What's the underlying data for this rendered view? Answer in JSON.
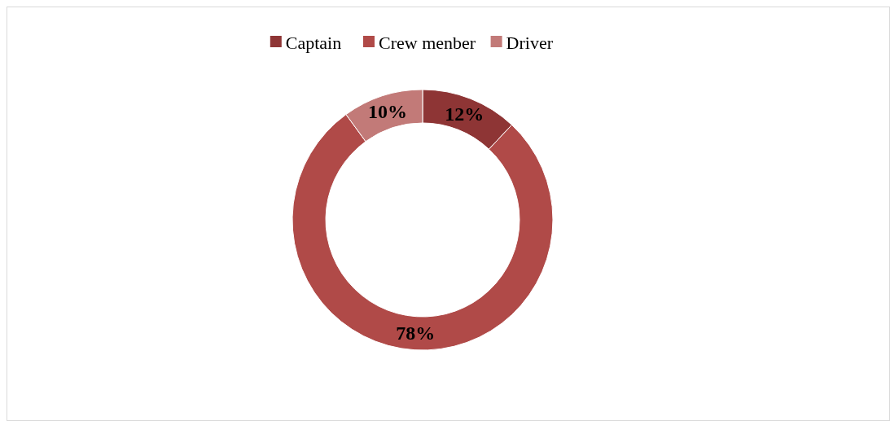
{
  "chart_data": {
    "type": "donut",
    "categories": [
      "Captain",
      "Crew menber",
      "Driver"
    ],
    "values": [
      12,
      78,
      10
    ],
    "colors": [
      "#8e3535",
      "#b04a48",
      "#c27a78"
    ],
    "legend": "top",
    "value_labels": [
      "12%",
      "78%",
      "10%"
    ]
  }
}
